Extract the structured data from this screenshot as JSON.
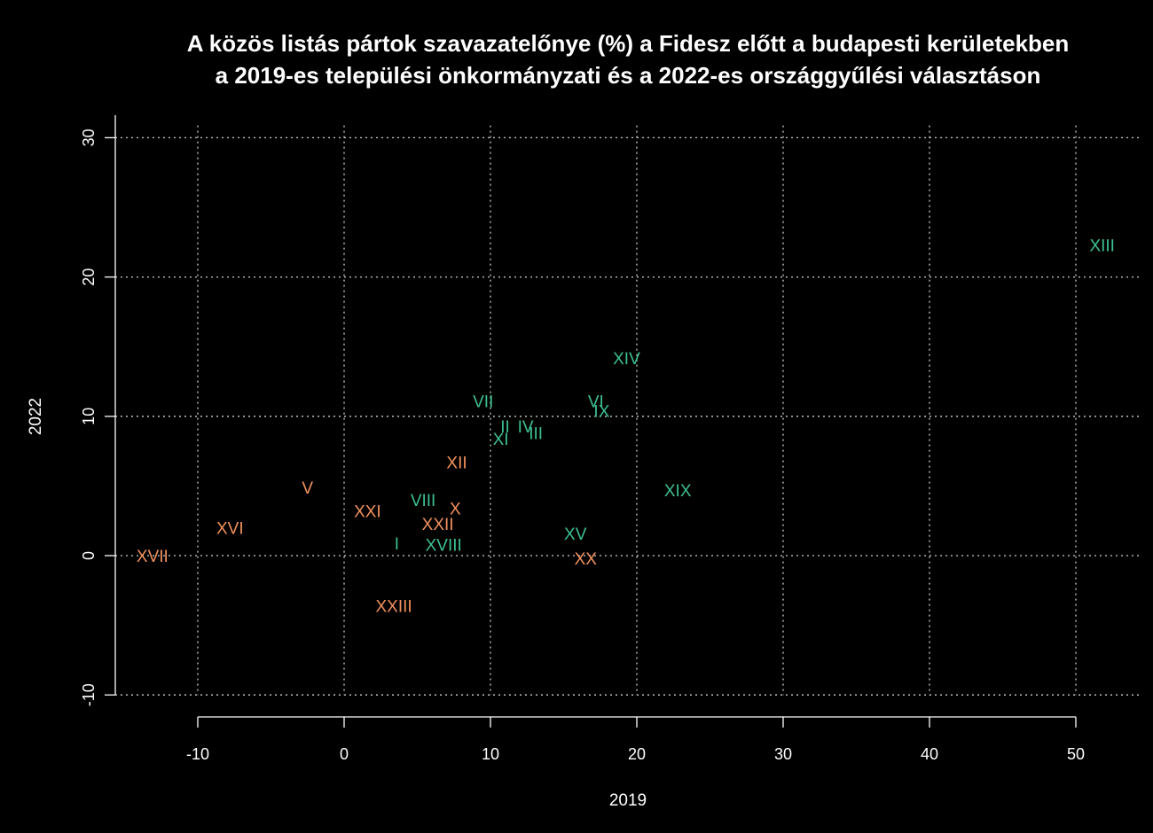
{
  "chart_data": {
    "type": "scatter",
    "title_line1": "A közös listás pártok szavazatelőnye (%) a Fidesz előtt a budapesti kerületekben",
    "title_line2": "a 2019-es települési önkormányzati és a 2022-es országgyűlési választáson",
    "xlabel": "2019",
    "ylabel": "2022",
    "xlim": [
      -15,
      53
    ],
    "ylim": [
      -11,
      31
    ],
    "x_ticks": [
      -10,
      0,
      10,
      20,
      30,
      40,
      50
    ],
    "y_ticks": [
      -10,
      0,
      10,
      20,
      30
    ],
    "grid": true,
    "colors": {
      "green": "#3dbf94",
      "orange": "#f0915e",
      "axis": "#ffffff",
      "grid": "#cfcfcf"
    },
    "points": [
      {
        "label": "XIII",
        "x": 51.8,
        "y": 22.3,
        "color": "green"
      },
      {
        "label": "XIV",
        "x": 19.3,
        "y": 14.2,
        "color": "green"
      },
      {
        "label": "VII",
        "x": 9.5,
        "y": 11.1,
        "color": "green"
      },
      {
        "label": "VI",
        "x": 17.2,
        "y": 11.1,
        "color": "green"
      },
      {
        "label": "IX",
        "x": 17.6,
        "y": 10.4,
        "color": "green"
      },
      {
        "label": "II",
        "x": 11.0,
        "y": 9.3,
        "color": "green"
      },
      {
        "label": "IV",
        "x": 12.4,
        "y": 9.3,
        "color": "green"
      },
      {
        "label": "III",
        "x": 13.1,
        "y": 8.8,
        "color": "green"
      },
      {
        "label": "XI",
        "x": 10.7,
        "y": 8.4,
        "color": "green"
      },
      {
        "label": "XII",
        "x": 7.7,
        "y": 6.7,
        "color": "orange"
      },
      {
        "label": "XIX",
        "x": 22.8,
        "y": 4.7,
        "color": "green"
      },
      {
        "label": "V",
        "x": -2.5,
        "y": 4.9,
        "color": "orange"
      },
      {
        "label": "VIII",
        "x": 5.4,
        "y": 4.0,
        "color": "green"
      },
      {
        "label": "X",
        "x": 7.6,
        "y": 3.4,
        "color": "orange"
      },
      {
        "label": "XXI",
        "x": 1.6,
        "y": 3.2,
        "color": "orange"
      },
      {
        "label": "XXII",
        "x": 6.4,
        "y": 2.3,
        "color": "orange"
      },
      {
        "label": "XVI",
        "x": -7.8,
        "y": 2.0,
        "color": "orange"
      },
      {
        "label": "XV",
        "x": 15.8,
        "y": 1.6,
        "color": "green"
      },
      {
        "label": "I",
        "x": 3.6,
        "y": 0.9,
        "color": "green"
      },
      {
        "label": "XVIII",
        "x": 6.8,
        "y": 0.8,
        "color": "green"
      },
      {
        "label": "XVII",
        "x": -13.1,
        "y": 0.0,
        "color": "orange"
      },
      {
        "label": "XX",
        "x": 16.5,
        "y": -0.2,
        "color": "orange"
      },
      {
        "label": "XXIII",
        "x": 3.4,
        "y": -3.6,
        "color": "orange"
      }
    ]
  }
}
